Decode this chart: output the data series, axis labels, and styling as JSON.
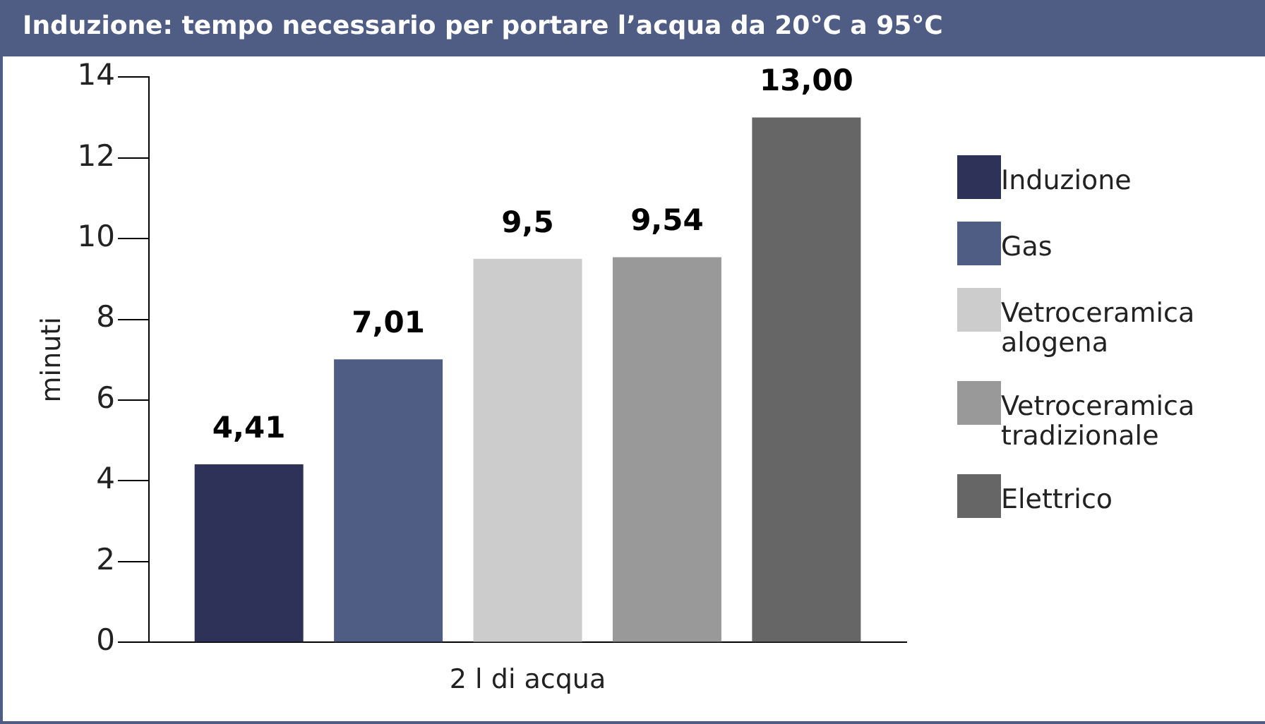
{
  "chart_data": {
    "type": "bar",
    "title": "Induzione: tempo necessario per portare l’acqua da 20°C a 95°C",
    "ylabel": "minuti",
    "categories": [
      "2 l di acqua"
    ],
    "series": [
      {
        "name": "Induzione",
        "color": "#2e3158",
        "values": [
          4.41
        ],
        "value_labels": [
          "4,41"
        ]
      },
      {
        "name": "Gas",
        "color": "#4f5d85",
        "values": [
          7.01
        ],
        "value_labels": [
          "7,01"
        ]
      },
      {
        "name": "Vetroceramica alogena",
        "color": "#cccccc",
        "values": [
          9.5
        ],
        "value_labels": [
          "9,5"
        ]
      },
      {
        "name": "Vetroceramica tradizionale",
        "color": "#999999",
        "values": [
          9.54
        ],
        "value_labels": [
          "9,54"
        ]
      },
      {
        "name": "Elettrico",
        "color": "#666666",
        "values": [
          13.0
        ],
        "value_labels": [
          "13,00"
        ]
      }
    ],
    "ylim": [
      0,
      14
    ],
    "yticks": [
      0,
      2,
      4,
      6,
      8,
      10,
      12,
      14
    ],
    "legend": "right"
  }
}
